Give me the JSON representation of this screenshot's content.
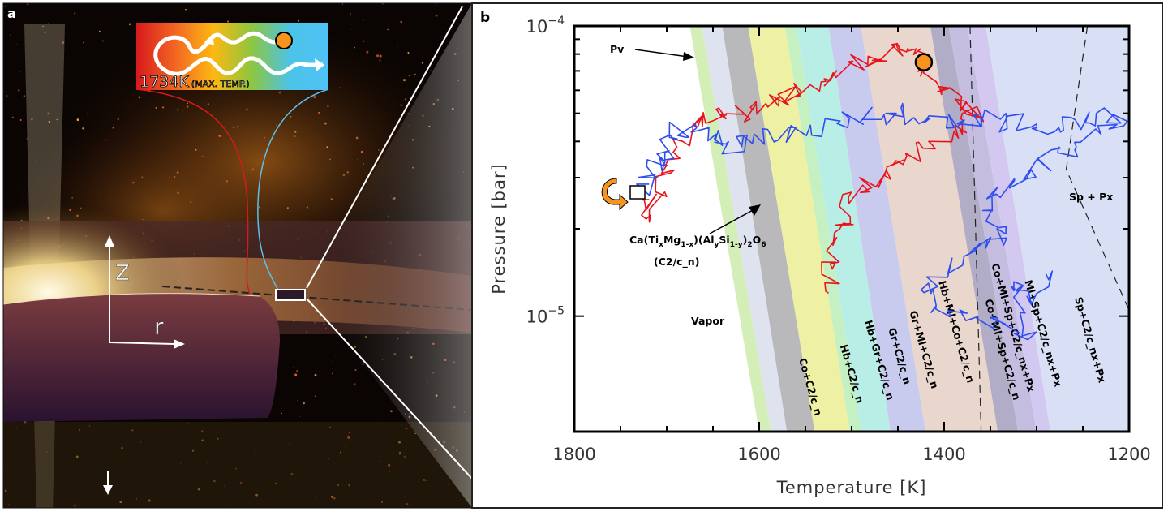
{
  "panel_a": {
    "label": "a",
    "inset_text": "1734K",
    "inset_subtext": "(MAX. TEMP.)",
    "axis_z": "Z",
    "axis_r": "r",
    "inset_gradient": [
      "#d7191c",
      "#f26522",
      "#fdb813",
      "#8dc63f",
      "#4cc3e8",
      "#4fc3f7"
    ],
    "particle_color": "#f7941d"
  },
  "panel_b": {
    "label": "b"
  },
  "chart_data": {
    "type": "line",
    "xlabel": "Temperature [K]",
    "ylabel": "Pressure [bar]",
    "xlim": [
      1800,
      1200
    ],
    "ylim": [
      4e-06,
      0.0001
    ],
    "yscale": "log",
    "x_ticks": [
      "1800",
      "1600",
      "1400",
      "1200"
    ],
    "y_ticks": [
      {
        "base": "10",
        "exp": "−4"
      },
      {
        "base": "10",
        "exp": "−5"
      }
    ],
    "grid": false,
    "colors": {
      "red_path": "#e8141c",
      "blue_path": "#2f4ef0",
      "start_marker": "#f7941d",
      "end_marker": "#f7941d"
    },
    "phase_fields": [
      {
        "top": [
          1675,
          1662
        ],
        "bottom": [
          1600,
          1587
        ],
        "color": "#d4eeb8"
      },
      {
        "top": [
          1662,
          1640
        ],
        "bottom": [
          1587,
          1570
        ],
        "color": "#dfe3f0"
      },
      {
        "top": [
          1640,
          1612
        ],
        "bottom": [
          1570,
          1540
        ],
        "color": "#b9b9bb"
      },
      {
        "top": [
          1612,
          1572
        ],
        "bottom": [
          1540,
          1502
        ],
        "color": "#eef0a4"
      },
      {
        "top": [
          1572,
          1560
        ],
        "bottom": [
          1502,
          1490
        ],
        "color": "#c5f0c2"
      },
      {
        "top": [
          1560,
          1525
        ],
        "bottom": [
          1490,
          1458
        ],
        "color": "#b9eee6"
      },
      {
        "top": [
          1525,
          1490
        ],
        "bottom": [
          1458,
          1420
        ],
        "color": "#c8cbee"
      },
      {
        "top": [
          1490,
          1415
        ],
        "bottom": [
          1420,
          1342
        ],
        "color": "#e9d6cc"
      },
      {
        "top": [
          1415,
          1395
        ],
        "bottom": [
          1342,
          1320
        ],
        "color": "#b1adc7"
      },
      {
        "top": [
          1395,
          1375
        ],
        "bottom": [
          1320,
          1300
        ],
        "color": "#c4bde0"
      },
      {
        "top": [
          1375,
          1355
        ],
        "bottom": [
          1300,
          1285
        ],
        "color": "#d3c8f0"
      },
      {
        "top": [
          1355,
          1200
        ],
        "bottom": [
          1285,
          1200
        ],
        "color": "#d9dff5"
      }
    ],
    "field_labels": [
      "Co+C2/c_n",
      "Hb+C2/c_n",
      "Hb+Gr+C2/c_n",
      "Gr+C2/c_n",
      "Gr+Ml+C2/c_n",
      "Hb+Ml+Co+C2/c_n",
      "Co+Ml+Sp+C2/c_nx+Px",
      "Co+Ml+Sp+C2/c_n",
      "Ml+Sp+C2/c_nx+Px",
      "Sp+C2/c_nx+Px"
    ],
    "region_labels": {
      "vapor": "Vapor",
      "sp_px": "Sp + Px",
      "pv": "Pv",
      "cpx_formula": "Ca(TixMg1-x)(AlySi1-y)2O6",
      "cpx_short": "(C2/c_n)"
    },
    "dashed_lines": [
      [
        [
          1245,
          0.0001
        ],
        [
          1268,
          3.2e-05
        ],
        [
          1200,
          1.05e-05
        ]
      ],
      [
        [
          1372,
          0.0001
        ],
        [
          1360,
          4e-06
        ]
      ]
    ],
    "series": [
      {
        "color": "red",
        "points": [
          [
            1730,
            2.7e-05
          ],
          [
            1712,
            2.2e-05
          ],
          [
            1700,
            3.2e-05
          ],
          [
            1690,
            3.8e-05
          ],
          [
            1672,
            4.6e-05
          ],
          [
            1640,
            4.9e-05
          ],
          [
            1610,
            5e-05
          ],
          [
            1585,
            5.6e-05
          ],
          [
            1560,
            6e-05
          ],
          [
            1530,
            6.4e-05
          ],
          [
            1500,
            7.2e-05
          ],
          [
            1470,
            8e-05
          ],
          [
            1445,
            8.5e-05
          ],
          [
            1422,
            7.5e-05
          ],
          [
            1405,
            6.4e-05
          ],
          [
            1385,
            5.6e-05
          ],
          [
            1365,
            5e-05
          ],
          [
            1385,
            4.4e-05
          ],
          [
            1420,
            3.8e-05
          ],
          [
            1450,
            3.3e-05
          ],
          [
            1480,
            2.9e-05
          ],
          [
            1500,
            2.6e-05
          ],
          [
            1510,
            2e-05
          ],
          [
            1520,
            1.6e-05
          ],
          [
            1525,
            1.2e-05
          ]
        ]
      },
      {
        "color": "blue",
        "points": [
          [
            1730,
            2.7e-05
          ],
          [
            1712,
            3.2e-05
          ],
          [
            1700,
            3.7e-05
          ],
          [
            1688,
            4.4e-05
          ],
          [
            1660,
            4.2e-05
          ],
          [
            1630,
            3.9e-05
          ],
          [
            1600,
            4.1e-05
          ],
          [
            1560,
            4.3e-05
          ],
          [
            1520,
            4.6e-05
          ],
          [
            1480,
            4.9e-05
          ],
          [
            1440,
            5e-05
          ],
          [
            1400,
            4.6e-05
          ],
          [
            1360,
            4.8e-05
          ],
          [
            1320,
            4.6e-05
          ],
          [
            1280,
            4.4e-05
          ],
          [
            1240,
            4.8e-05
          ],
          [
            1205,
            5e-05
          ],
          [
            1250,
            4e-05
          ],
          [
            1290,
            3.4e-05
          ],
          [
            1330,
            2.9e-05
          ],
          [
            1360,
            2.4e-05
          ],
          [
            1330,
            1.9e-05
          ],
          [
            1380,
            1.6e-05
          ],
          [
            1420,
            1.3e-05
          ],
          [
            1400,
            1.05e-05
          ],
          [
            1350,
            9.5e-06
          ],
          [
            1310,
            8.8e-06
          ],
          [
            1330,
            1.3e-05
          ],
          [
            1300,
            1.15e-05
          ],
          [
            1290,
            1.4e-05
          ]
        ]
      }
    ]
  }
}
